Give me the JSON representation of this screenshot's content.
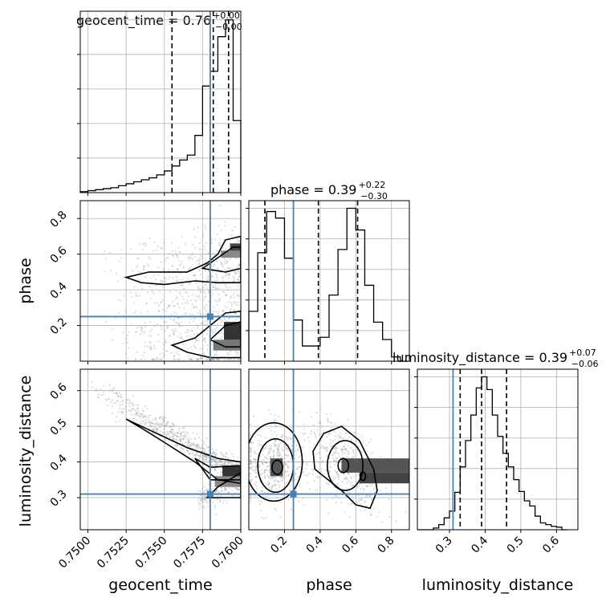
{
  "chart_data": {
    "type": "corner",
    "truth_color": "#4682b4",
    "panels": [
      {
        "id": "hist-geocent",
        "param": "geocent_time",
        "title_prefix": "geocent_time = 0.76",
        "title_sup": "+0.00",
        "title_sub": "−0.00",
        "x_range": [
          0.7495,
          0.76
        ],
        "bins": [
          0.7495,
          0.75,
          0.7505,
          0.751,
          0.7515,
          0.752,
          0.7525,
          0.753,
          0.7535,
          0.754,
          0.7545,
          0.755,
          0.7555,
          0.756,
          0.7565,
          0.757,
          0.7575,
          0.758,
          0.7585,
          0.759,
          0.7595,
          0.76
        ],
        "counts": [
          1,
          2,
          3,
          4,
          5,
          7,
          9,
          11,
          13,
          15,
          18,
          22,
          27,
          33,
          38,
          58,
          108,
          123,
          158,
          175,
          73
        ],
        "quantiles": [
          0.7555,
          0.7582,
          0.7592
        ],
        "truth": 0.758
      },
      {
        "id": "hist-phase",
        "param": "phase",
        "title_prefix": "phase = 0.39",
        "title_sup": "+0.22",
        "title_sub": "−0.30",
        "x_range": [
          0.0,
          0.9
        ],
        "bins": [
          0.0,
          0.05,
          0.1,
          0.15,
          0.2,
          0.25,
          0.3,
          0.35,
          0.4,
          0.45,
          0.5,
          0.55,
          0.6,
          0.65,
          0.7,
          0.75,
          0.8,
          0.85,
          0.9
        ],
        "counts": [
          46,
          100,
          138,
          132,
          95,
          38,
          14,
          14,
          22,
          61,
          103,
          141,
          121,
          70,
          36,
          20,
          4,
          0
        ],
        "quantiles": [
          0.09,
          0.39,
          0.61
        ],
        "truth": 0.25
      },
      {
        "id": "hist-lumdist",
        "param": "luminosity_distance",
        "title_prefix": "luminosity_distance = 0.39",
        "title_sup": "+0.07",
        "title_sub": "−0.06",
        "x_range": [
          0.21,
          0.66
        ],
        "bins": [
          0.21,
          0.225,
          0.24,
          0.255,
          0.27,
          0.285,
          0.3,
          0.315,
          0.33,
          0.345,
          0.36,
          0.375,
          0.39,
          0.405,
          0.42,
          0.435,
          0.45,
          0.465,
          0.48,
          0.495,
          0.51,
          0.525,
          0.54,
          0.555,
          0.57,
          0.585,
          0.6,
          0.615,
          0.63
        ],
        "counts": [
          0,
          0,
          0,
          2,
          6,
          14,
          22,
          44,
          74,
          105,
          135,
          167,
          180,
          165,
          135,
          110,
          90,
          74,
          59,
          45,
          34,
          28,
          16,
          8,
          6,
          4,
          3,
          0
        ],
        "quantiles": [
          0.33,
          0.39,
          0.46
        ],
        "truth": 0.31
      }
    ],
    "axes": {
      "geocent_time": {
        "label": "geocent_time",
        "range": [
          0.7495,
          0.76
        ],
        "ticks": [
          "0.7500",
          "0.7525",
          "0.7550",
          "0.7575",
          "0.7600"
        ],
        "tick_values": [
          0.75,
          0.7525,
          0.755,
          0.7575,
          0.76
        ]
      },
      "phase": {
        "label": "phase",
        "range": [
          0.0,
          0.9
        ],
        "ticks": [
          "0.2",
          "0.4",
          "0.6",
          "0.8"
        ],
        "tick_values": [
          0.2,
          0.4,
          0.6,
          0.8
        ]
      },
      "luminosity_distance": {
        "label": "luminosity_distance",
        "range": [
          0.21,
          0.66
        ],
        "ticks": [
          "0.3",
          "0.4",
          "0.5",
          "0.6"
        ],
        "tick_values": [
          0.3,
          0.4,
          0.5,
          0.6
        ]
      }
    },
    "truths": {
      "geocent_time": 0.758,
      "phase": 0.25,
      "luminosity_distance": 0.31
    },
    "grid": true
  }
}
